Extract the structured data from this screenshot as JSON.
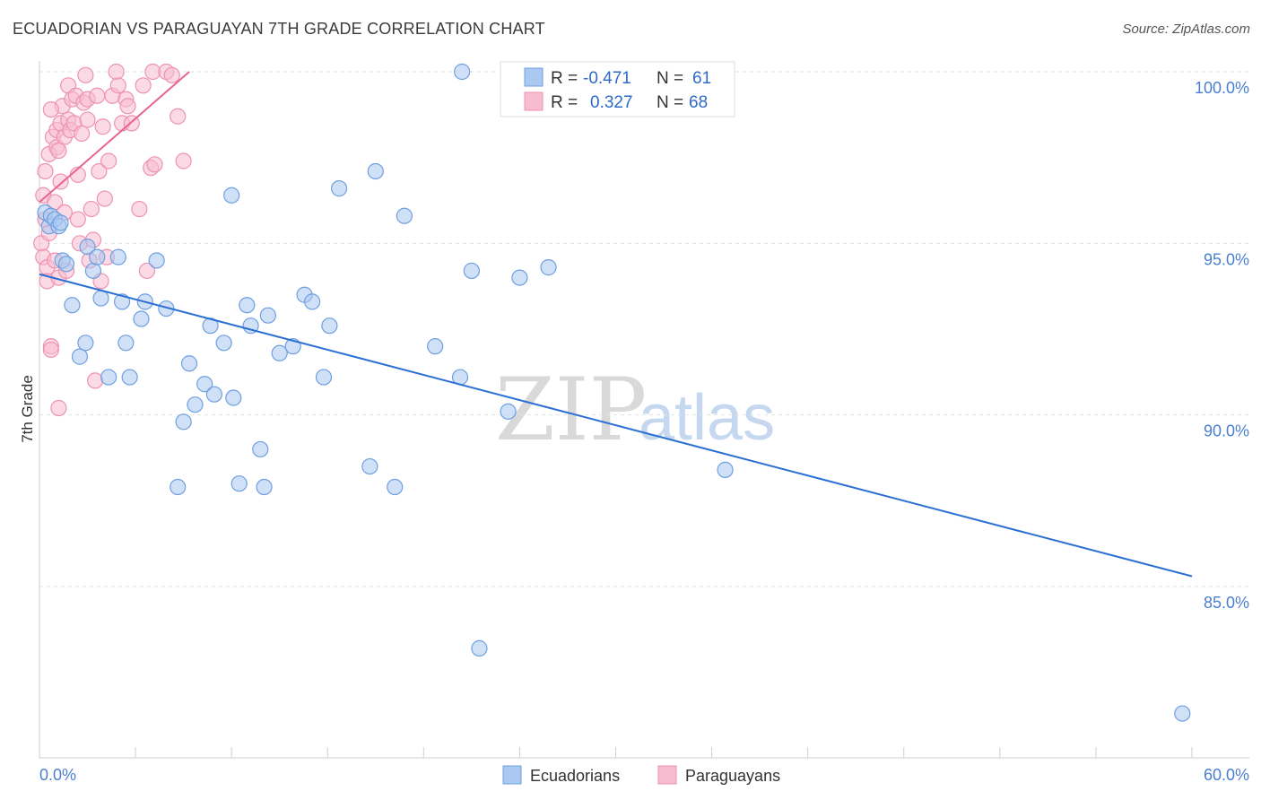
{
  "title": "ECUADORIAN VS PARAGUAYAN 7TH GRADE CORRELATION CHART",
  "source": "Source: ZipAtlas.com",
  "watermark": {
    "zip": "ZIP",
    "atlas": "atlas"
  },
  "legend": {
    "r_label": "R =",
    "n_label": "N =",
    "ecuadorians": {
      "r": "-0.471",
      "n": "61"
    },
    "paraguayans": {
      "r": "0.327",
      "n": "68"
    }
  },
  "bottom_legend": {
    "ecuadorians": "Ecuadorians",
    "paraguayans": "Paraguayans"
  },
  "colors": {
    "blue_fill": "#aac8f0",
    "blue_stroke": "#6e9fe0",
    "blue_line": "#2a6fd1",
    "pink_fill": "#f7bcd0",
    "pink_stroke": "#ee92b2",
    "pink_line": "#e8648e"
  },
  "chart_data": {
    "type": "scatter",
    "title": "ECUADORIAN VS PARAGUAYAN 7TH GRADE CORRELATION CHART",
    "xlabel": "",
    "ylabel": "7th Grade",
    "xlim": [
      0,
      60
    ],
    "ylim": [
      80.5,
      101
    ],
    "x_tick_labels": [
      "0.0%",
      "60.0%"
    ],
    "y_ticks": [
      {
        "value": 100,
        "label": "100.0%"
      },
      {
        "value": 95,
        "label": "95.0%"
      },
      {
        "value": 90,
        "label": "90.0%"
      },
      {
        "value": 85,
        "label": "85.0%"
      }
    ],
    "series": [
      {
        "name": "Ecuadorians",
        "r": -0.471,
        "n": 61,
        "trend": {
          "x": [
            0,
            60
          ],
          "y": [
            94.1,
            85.3
          ]
        },
        "points": [
          [
            0.3,
            95.9
          ],
          [
            0.5,
            95.5
          ],
          [
            0.6,
            95.8
          ],
          [
            0.8,
            95.7
          ],
          [
            1.0,
            95.5
          ],
          [
            1.1,
            95.6
          ],
          [
            1.2,
            94.5
          ],
          [
            1.4,
            94.4
          ],
          [
            1.7,
            93.2
          ],
          [
            2.1,
            91.7
          ],
          [
            2.4,
            92.1
          ],
          [
            2.5,
            94.9
          ],
          [
            2.8,
            94.2
          ],
          [
            3.0,
            94.6
          ],
          [
            3.2,
            93.4
          ],
          [
            3.6,
            91.1
          ],
          [
            4.1,
            94.6
          ],
          [
            4.3,
            93.3
          ],
          [
            4.5,
            92.1
          ],
          [
            4.7,
            91.1
          ],
          [
            5.3,
            92.8
          ],
          [
            5.5,
            93.3
          ],
          [
            6.1,
            94.5
          ],
          [
            6.6,
            93.1
          ],
          [
            7.2,
            87.9
          ],
          [
            7.5,
            89.8
          ],
          [
            7.8,
            91.5
          ],
          [
            8.1,
            90.3
          ],
          [
            8.6,
            90.9
          ],
          [
            8.9,
            92.6
          ],
          [
            9.1,
            90.6
          ],
          [
            9.6,
            92.1
          ],
          [
            10.0,
            96.4
          ],
          [
            10.1,
            90.5
          ],
          [
            10.4,
            88.0
          ],
          [
            10.8,
            93.2
          ],
          [
            11.0,
            92.6
          ],
          [
            11.5,
            89.0
          ],
          [
            11.7,
            87.9
          ],
          [
            11.9,
            92.9
          ],
          [
            12.5,
            91.8
          ],
          [
            13.2,
            92.0
          ],
          [
            13.8,
            93.5
          ],
          [
            14.2,
            93.3
          ],
          [
            14.8,
            91.1
          ],
          [
            15.1,
            92.6
          ],
          [
            15.6,
            96.6
          ],
          [
            17.2,
            88.5
          ],
          [
            17.5,
            97.1
          ],
          [
            18.5,
            87.9
          ],
          [
            19.0,
            95.8
          ],
          [
            20.6,
            92.0
          ],
          [
            21.9,
            91.1
          ],
          [
            22.0,
            100.0
          ],
          [
            22.5,
            94.2
          ],
          [
            22.9,
            83.2
          ],
          [
            24.4,
            90.1
          ],
          [
            25.0,
            94.0
          ],
          [
            26.5,
            94.3
          ],
          [
            35.7,
            88.4
          ],
          [
            59.5,
            81.3
          ]
        ]
      },
      {
        "name": "Paraguayans",
        "r": 0.327,
        "n": 68,
        "trend": {
          "x": [
            0,
            7.8
          ],
          "y": [
            96.2,
            100.0
          ]
        },
        "points": [
          [
            0.1,
            95.0
          ],
          [
            0.2,
            94.6
          ],
          [
            0.2,
            96.4
          ],
          [
            0.3,
            97.1
          ],
          [
            0.3,
            95.7
          ],
          [
            0.4,
            94.3
          ],
          [
            0.4,
            93.9
          ],
          [
            0.5,
            95.3
          ],
          [
            0.5,
            97.6
          ],
          [
            0.6,
            92.0
          ],
          [
            0.6,
            91.9
          ],
          [
            0.7,
            98.1
          ],
          [
            0.8,
            94.5
          ],
          [
            0.8,
            96.2
          ],
          [
            0.9,
            98.3
          ],
          [
            0.9,
            97.8
          ],
          [
            1.0,
            94.0
          ],
          [
            1.0,
            90.2
          ],
          [
            1.1,
            98.5
          ],
          [
            1.1,
            96.8
          ],
          [
            1.2,
            99.0
          ],
          [
            1.3,
            98.1
          ],
          [
            1.3,
            95.9
          ],
          [
            1.4,
            94.2
          ],
          [
            1.5,
            99.6
          ],
          [
            1.5,
            98.6
          ],
          [
            1.6,
            98.3
          ],
          [
            1.7,
            99.2
          ],
          [
            1.8,
            98.5
          ],
          [
            1.9,
            99.3
          ],
          [
            2.0,
            97.0
          ],
          [
            2.0,
            95.7
          ],
          [
            2.1,
            95.0
          ],
          [
            2.2,
            98.2
          ],
          [
            2.3,
            99.1
          ],
          [
            2.4,
            99.9
          ],
          [
            2.5,
            98.6
          ],
          [
            2.5,
            99.2
          ],
          [
            2.6,
            94.5
          ],
          [
            2.7,
            96.0
          ],
          [
            2.8,
            95.1
          ],
          [
            2.9,
            91.0
          ],
          [
            3.0,
            99.3
          ],
          [
            3.1,
            97.1
          ],
          [
            3.2,
            93.9
          ],
          [
            3.3,
            98.4
          ],
          [
            3.4,
            96.3
          ],
          [
            3.5,
            94.6
          ],
          [
            3.6,
            97.4
          ],
          [
            3.8,
            99.3
          ],
          [
            4.0,
            100.0
          ],
          [
            4.1,
            99.6
          ],
          [
            4.3,
            98.5
          ],
          [
            4.5,
            99.2
          ],
          [
            4.6,
            99.0
          ],
          [
            4.8,
            98.5
          ],
          [
            5.2,
            96.0
          ],
          [
            5.4,
            99.6
          ],
          [
            5.6,
            94.2
          ],
          [
            5.8,
            97.2
          ],
          [
            5.9,
            100.0
          ],
          [
            6.0,
            97.3
          ],
          [
            6.6,
            100.0
          ],
          [
            6.9,
            99.9
          ],
          [
            7.2,
            98.7
          ],
          [
            7.5,
            97.4
          ],
          [
            0.6,
            98.9
          ],
          [
            1.0,
            97.7
          ]
        ]
      }
    ]
  }
}
